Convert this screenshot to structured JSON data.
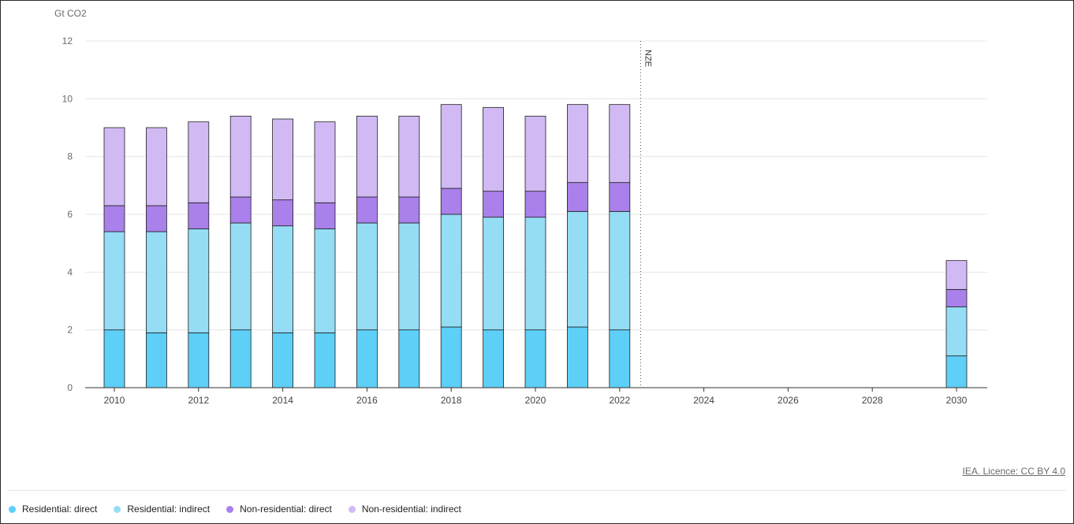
{
  "chart_data": {
    "type": "bar",
    "stacked": true,
    "ylabel": "Gt CO2",
    "ylim": [
      0,
      12
    ],
    "yticks": [
      0,
      2,
      4,
      6,
      8,
      10,
      12
    ],
    "x_range": [
      2010,
      2030
    ],
    "xticks": [
      2010,
      2012,
      2014,
      2016,
      2018,
      2020,
      2022,
      2024,
      2026,
      2028,
      2030
    ],
    "categories": [
      2010,
      2011,
      2012,
      2013,
      2014,
      2015,
      2016,
      2017,
      2018,
      2019,
      2020,
      2021,
      2022,
      2030
    ],
    "series": [
      {
        "name": "Residential: direct",
        "color": "#5ecff7",
        "values": [
          2.0,
          1.9,
          1.9,
          2.0,
          1.9,
          1.9,
          2.0,
          2.0,
          2.1,
          2.0,
          2.0,
          2.1,
          2.0,
          1.1
        ]
      },
      {
        "name": "Residential: indirect",
        "color": "#95ddf5",
        "values": [
          3.4,
          3.5,
          3.6,
          3.7,
          3.7,
          3.6,
          3.7,
          3.7,
          3.9,
          3.9,
          3.9,
          4.0,
          4.1,
          1.7
        ]
      },
      {
        "name": "Non-residential: direct",
        "color": "#aa80ea",
        "values": [
          0.9,
          0.9,
          0.9,
          0.9,
          0.9,
          0.9,
          0.9,
          0.9,
          0.9,
          0.9,
          0.9,
          1.0,
          1.0,
          0.6
        ]
      },
      {
        "name": "Non-residential: indirect",
        "color": "#d1baf3",
        "values": [
          2.7,
          2.7,
          2.8,
          2.8,
          2.8,
          2.8,
          2.8,
          2.8,
          2.9,
          2.9,
          2.6,
          2.7,
          2.7,
          1.0
        ]
      }
    ],
    "annotation": {
      "label": "NZE",
      "x": 2022.5
    },
    "grid": true,
    "legend_position": "bottom-left"
  },
  "source_link": "IEA. Licence: CC BY 4.0"
}
